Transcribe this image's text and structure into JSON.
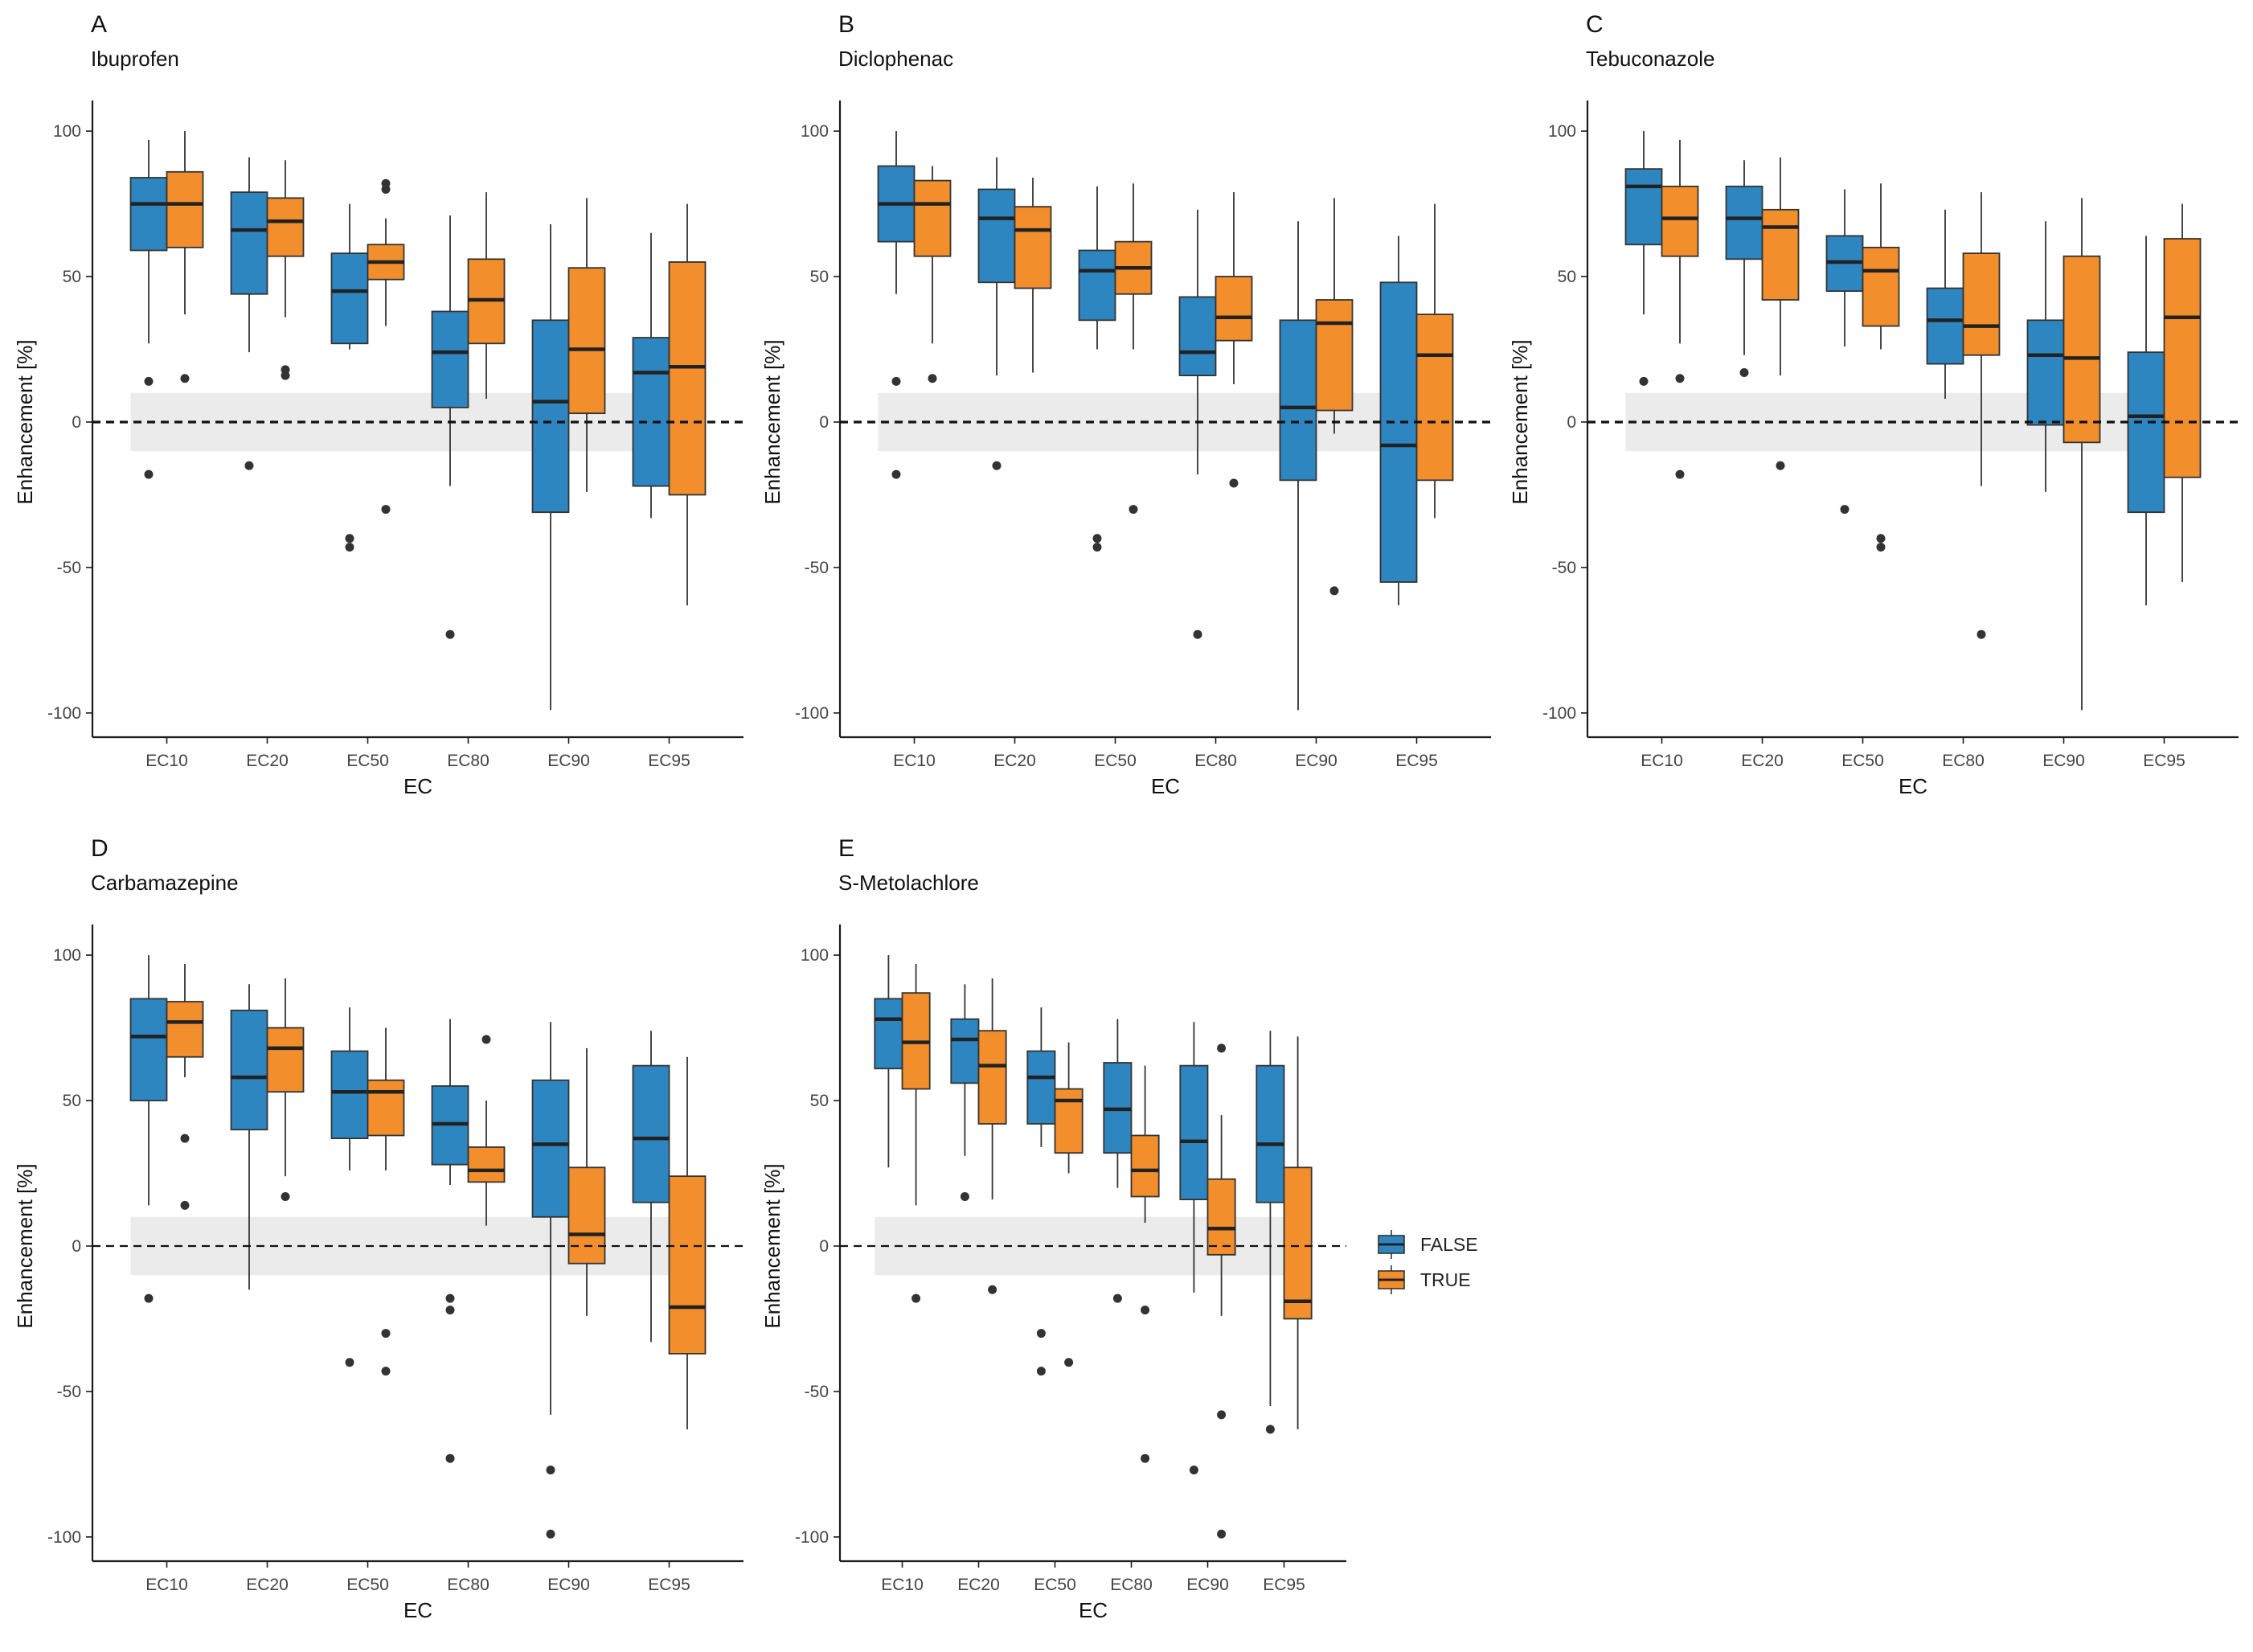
{
  "colors": {
    "false": "#2e86c1",
    "true": "#f28e2b",
    "band": "#ebebeb",
    "ink": "#1a1a1a"
  },
  "legend": {
    "false_label": "FALSE",
    "true_label": "TRUE"
  },
  "chart_data": [
    {
      "type": "boxplot",
      "letter": "A",
      "title": "Ibuprofen",
      "xlabel": "EC",
      "ylabel": "Enhancement [%]",
      "ylim": [
        -105,
        105
      ],
      "yticks": [
        100,
        50,
        0,
        -50,
        -100
      ],
      "band": [
        -10,
        10
      ],
      "reference_line": 0,
      "categories": [
        "EC10",
        "EC20",
        "EC50",
        "EC80",
        "EC90",
        "EC95"
      ],
      "series": [
        {
          "name": "FALSE",
          "boxes": [
            {
              "low": 27,
              "q1": 59,
              "median": 75,
              "q3": 84,
              "high": 97,
              "outliers": [
                14,
                -18
              ]
            },
            {
              "low": 24,
              "q1": 44,
              "median": 66,
              "q3": 79,
              "high": 91,
              "outliers": [
                -15
              ]
            },
            {
              "low": 25,
              "q1": 27,
              "median": 45,
              "q3": 58,
              "high": 75,
              "outliers": [
                -40,
                -43
              ]
            },
            {
              "low": -22,
              "q1": 5,
              "median": 24,
              "q3": 38,
              "high": 71,
              "outliers": [
                -73
              ]
            },
            {
              "low": -99,
              "q1": -31,
              "median": 7,
              "q3": 35,
              "high": 68,
              "outliers": []
            },
            {
              "low": -33,
              "q1": -22,
              "median": 17,
              "q3": 29,
              "high": 65,
              "outliers": []
            }
          ]
        },
        {
          "name": "TRUE",
          "boxes": [
            {
              "low": 37,
              "q1": 60,
              "median": 75,
              "q3": 86,
              "high": 100,
              "outliers": [
                15
              ]
            },
            {
              "low": 36,
              "q1": 57,
              "median": 69,
              "q3": 77,
              "high": 90,
              "outliers": [
                18,
                16
              ]
            },
            {
              "low": 33,
              "q1": 49,
              "median": 55,
              "q3": 61,
              "high": 70,
              "outliers": [
                82,
                80,
                -30
              ]
            },
            {
              "low": 8,
              "q1": 27,
              "median": 42,
              "q3": 56,
              "high": 79,
              "outliers": []
            },
            {
              "low": -24,
              "q1": 3,
              "median": 25,
              "q3": 53,
              "high": 77,
              "outliers": []
            },
            {
              "low": -63,
              "q1": -25,
              "median": 19,
              "q3": 55,
              "high": 75,
              "outliers": []
            }
          ]
        }
      ]
    },
    {
      "type": "boxplot",
      "letter": "B",
      "title": "Diclophenac",
      "xlabel": "EC",
      "ylabel": "Enhancement [%]",
      "ylim": [
        -105,
        105
      ],
      "yticks": [
        100,
        50,
        0,
        -50,
        -100
      ],
      "band": [
        -10,
        10
      ],
      "reference_line": 0,
      "categories": [
        "EC10",
        "EC20",
        "EC50",
        "EC80",
        "EC90",
        "EC95"
      ],
      "series": [
        {
          "name": "FALSE",
          "boxes": [
            {
              "low": 44,
              "q1": 62,
              "median": 75,
              "q3": 88,
              "high": 100,
              "outliers": [
                14,
                -18
              ]
            },
            {
              "low": 16,
              "q1": 48,
              "median": 70,
              "q3": 80,
              "high": 91,
              "outliers": [
                -15
              ]
            },
            {
              "low": 25,
              "q1": 35,
              "median": 52,
              "q3": 59,
              "high": 81,
              "outliers": [
                -40,
                -43
              ]
            },
            {
              "low": -18,
              "q1": 16,
              "median": 24,
              "q3": 43,
              "high": 73,
              "outliers": [
                -73
              ]
            },
            {
              "low": -99,
              "q1": -20,
              "median": 5,
              "q3": 35,
              "high": 69,
              "outliers": []
            },
            {
              "low": -63,
              "q1": -55,
              "median": -8,
              "q3": 48,
              "high": 64,
              "outliers": []
            }
          ]
        },
        {
          "name": "TRUE",
          "boxes": [
            {
              "low": 27,
              "q1": 57,
              "median": 75,
              "q3": 83,
              "high": 88,
              "outliers": [
                15
              ]
            },
            {
              "low": 17,
              "q1": 46,
              "median": 66,
              "q3": 74,
              "high": 84,
              "outliers": []
            },
            {
              "low": 25,
              "q1": 44,
              "median": 53,
              "q3": 62,
              "high": 82,
              "outliers": [
                -30
              ]
            },
            {
              "low": 13,
              "q1": 28,
              "median": 36,
              "q3": 50,
              "high": 79,
              "outliers": [
                -21
              ]
            },
            {
              "low": -4,
              "q1": 4,
              "median": 34,
              "q3": 42,
              "high": 77,
              "outliers": [
                -58
              ]
            },
            {
              "low": -33,
              "q1": -20,
              "median": 23,
              "q3": 37,
              "high": 75,
              "outliers": []
            }
          ]
        }
      ]
    },
    {
      "type": "boxplot",
      "letter": "C",
      "title": "Tebuconazole",
      "xlabel": "EC",
      "ylabel": "Enhancement [%]",
      "ylim": [
        -105,
        105
      ],
      "yticks": [
        100,
        50,
        0,
        -50,
        -100
      ],
      "band": [
        -10,
        10
      ],
      "reference_line": 0,
      "categories": [
        "EC10",
        "EC20",
        "EC50",
        "EC80",
        "EC90",
        "EC95"
      ],
      "series": [
        {
          "name": "FALSE",
          "boxes": [
            {
              "low": 37,
              "q1": 61,
              "median": 81,
              "q3": 87,
              "high": 100,
              "outliers": [
                14
              ]
            },
            {
              "low": 23,
              "q1": 56,
              "median": 70,
              "q3": 81,
              "high": 90,
              "outliers": [
                17
              ]
            },
            {
              "low": 26,
              "q1": 45,
              "median": 55,
              "q3": 64,
              "high": 80,
              "outliers": [
                -30
              ]
            },
            {
              "low": 8,
              "q1": 20,
              "median": 35,
              "q3": 46,
              "high": 73,
              "outliers": []
            },
            {
              "low": -24,
              "q1": -1,
              "median": 23,
              "q3": 35,
              "high": 69,
              "outliers": []
            },
            {
              "low": -63,
              "q1": -31,
              "median": 2,
              "q3": 24,
              "high": 64,
              "outliers": []
            }
          ]
        },
        {
          "name": "TRUE",
          "boxes": [
            {
              "low": 27,
              "q1": 57,
              "median": 70,
              "q3": 81,
              "high": 97,
              "outliers": [
                15,
                -18
              ]
            },
            {
              "low": 16,
              "q1": 42,
              "median": 67,
              "q3": 73,
              "high": 91,
              "outliers": [
                -15
              ]
            },
            {
              "low": 25,
              "q1": 33,
              "median": 52,
              "q3": 60,
              "high": 82,
              "outliers": [
                -40,
                -43
              ]
            },
            {
              "low": -22,
              "q1": 23,
              "median": 33,
              "q3": 58,
              "high": 79,
              "outliers": [
                -73
              ]
            },
            {
              "low": -99,
              "q1": -7,
              "median": 22,
              "q3": 57,
              "high": 77,
              "outliers": []
            },
            {
              "low": -55,
              "q1": -19,
              "median": 36,
              "q3": 63,
              "high": 75,
              "outliers": []
            }
          ]
        }
      ]
    },
    {
      "type": "boxplot",
      "letter": "D",
      "title": "Carbamazepine",
      "xlabel": "EC",
      "ylabel": "Enhancement [%]",
      "ylim": [
        -105,
        105
      ],
      "yticks": [
        100,
        50,
        0,
        -50,
        -100
      ],
      "band": [
        -10,
        10
      ],
      "reference_line": 0,
      "categories": [
        "EC10",
        "EC20",
        "EC50",
        "EC80",
        "EC90",
        "EC95"
      ],
      "series": [
        {
          "name": "FALSE",
          "boxes": [
            {
              "low": 14,
              "q1": 50,
              "median": 72,
              "q3": 85,
              "high": 100,
              "outliers": [
                -18
              ]
            },
            {
              "low": -15,
              "q1": 40,
              "median": 58,
              "q3": 81,
              "high": 90,
              "outliers": []
            },
            {
              "low": 26,
              "q1": 37,
              "median": 53,
              "q3": 67,
              "high": 82,
              "outliers": [
                -40
              ]
            },
            {
              "low": 21,
              "q1": 28,
              "median": 42,
              "q3": 55,
              "high": 78,
              "outliers": [
                -18,
                -22,
                -73
              ]
            },
            {
              "low": -58,
              "q1": 10,
              "median": 35,
              "q3": 57,
              "high": 77,
              "outliers": [
                -77,
                -99
              ]
            },
            {
              "low": -33,
              "q1": 15,
              "median": 37,
              "q3": 62,
              "high": 74,
              "outliers": []
            }
          ]
        },
        {
          "name": "TRUE",
          "boxes": [
            {
              "low": 58,
              "q1": 65,
              "median": 77,
              "q3": 84,
              "high": 97,
              "outliers": [
                37,
                14
              ]
            },
            {
              "low": 24,
              "q1": 53,
              "median": 68,
              "q3": 75,
              "high": 92,
              "outliers": [
                17
              ]
            },
            {
              "low": 26,
              "q1": 38,
              "median": 53,
              "q3": 57,
              "high": 75,
              "outliers": [
                -30,
                -43
              ]
            },
            {
              "low": 7,
              "q1": 22,
              "median": 26,
              "q3": 34,
              "high": 50,
              "outliers": [
                71
              ]
            },
            {
              "low": -24,
              "q1": -6,
              "median": 4,
              "q3": 27,
              "high": 68,
              "outliers": []
            },
            {
              "low": -63,
              "q1": -37,
              "median": -21,
              "q3": 24,
              "high": 65,
              "outliers": []
            }
          ]
        }
      ]
    },
    {
      "type": "boxplot",
      "letter": "E",
      "title": "S-Metolachlore",
      "xlabel": "EC",
      "ylabel": "Enhancement [%]",
      "ylim": [
        -105,
        105
      ],
      "yticks": [
        100,
        50,
        0,
        -50,
        -100
      ],
      "band": [
        -10,
        10
      ],
      "reference_line": 0,
      "categories": [
        "EC10",
        "EC20",
        "EC50",
        "EC80",
        "EC90",
        "EC95"
      ],
      "series": [
        {
          "name": "FALSE",
          "boxes": [
            {
              "low": 27,
              "q1": 61,
              "median": 78,
              "q3": 85,
              "high": 100,
              "outliers": []
            },
            {
              "low": 31,
              "q1": 56,
              "median": 71,
              "q3": 78,
              "high": 90,
              "outliers": [
                17
              ]
            },
            {
              "low": 34,
              "q1": 42,
              "median": 58,
              "q3": 67,
              "high": 82,
              "outliers": [
                -30,
                -43
              ]
            },
            {
              "low": 20,
              "q1": 32,
              "median": 47,
              "q3": 63,
              "high": 78,
              "outliers": [
                -18
              ]
            },
            {
              "low": -16,
              "q1": 16,
              "median": 36,
              "q3": 62,
              "high": 77,
              "outliers": [
                -77
              ]
            },
            {
              "low": -55,
              "q1": 15,
              "median": 35,
              "q3": 62,
              "high": 74,
              "outliers": [
                -63
              ]
            }
          ]
        },
        {
          "name": "TRUE",
          "boxes": [
            {
              "low": 14,
              "q1": 54,
              "median": 70,
              "q3": 87,
              "high": 97,
              "outliers": [
                -18
              ]
            },
            {
              "low": 16,
              "q1": 42,
              "median": 62,
              "q3": 74,
              "high": 92,
              "outliers": [
                -15
              ]
            },
            {
              "low": 25,
              "q1": 32,
              "median": 50,
              "q3": 54,
              "high": 70,
              "outliers": [
                -40
              ]
            },
            {
              "low": 8,
              "q1": 17,
              "median": 26,
              "q3": 38,
              "high": 62,
              "outliers": [
                -22,
                -73
              ]
            },
            {
              "low": -24,
              "q1": -3,
              "median": 6,
              "q3": 23,
              "high": 45,
              "outliers": [
                68,
                -58,
                -99
              ]
            },
            {
              "low": -63,
              "q1": -25,
              "median": -19,
              "q3": 27,
              "high": 72,
              "outliers": []
            }
          ]
        }
      ]
    }
  ]
}
